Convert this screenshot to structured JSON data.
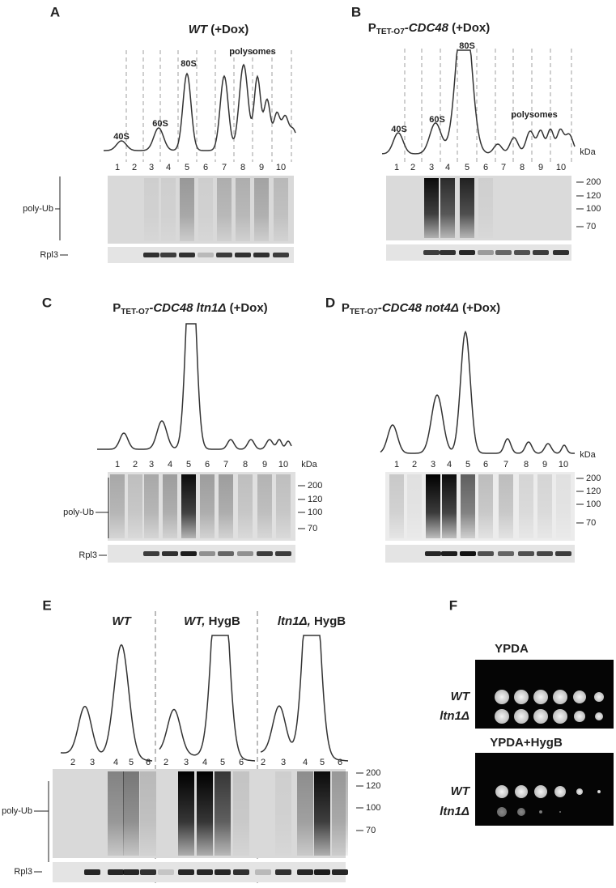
{
  "panel_a": {
    "label": "A",
    "title": [
      "WT",
      " (+Dox)"
    ],
    "peaks": [
      "40S",
      "60S",
      "80S",
      "polysomes"
    ],
    "fractions": [
      "1",
      "2",
      "3",
      "4",
      "5",
      "6",
      "7",
      "8",
      "9",
      "10"
    ],
    "blot_labels": [
      "poly-Ub",
      "Rpl3"
    ]
  },
  "panel_b": {
    "label": "B",
    "title": [
      "P",
      "TET-O7",
      "-CDC48",
      " (+Dox)"
    ],
    "peaks": [
      "40S",
      "60S",
      "80S",
      "polysomes"
    ],
    "fractions": [
      "1",
      "2",
      "3",
      "4",
      "5",
      "6",
      "7",
      "8",
      "9",
      "10"
    ],
    "kda_unit": "kDa",
    "kda_markers": [
      "200",
      "120",
      "100",
      "70"
    ]
  },
  "panel_c": {
    "label": "C",
    "title": [
      "P",
      "TET-O7",
      "-CDC48 ltn1Δ",
      " (+Dox)"
    ],
    "fractions": [
      "1",
      "2",
      "3",
      "4",
      "5",
      "6",
      "7",
      "8",
      "9",
      "10"
    ],
    "kda_unit": "kDa",
    "kda_markers": [
      "200",
      "120",
      "100",
      "70"
    ],
    "blot_labels": [
      "poly-Ub",
      "Rpl3"
    ]
  },
  "panel_d": {
    "label": "D",
    "title": [
      "P",
      "TET-O7",
      "-CDC48 not4Δ",
      " (+Dox)"
    ],
    "fractions": [
      "1",
      "2",
      "3",
      "4",
      "5",
      "6",
      "7",
      "8",
      "9",
      "10"
    ],
    "kda_unit": "kDa",
    "kda_markers": [
      "200",
      "120",
      "100",
      "70"
    ]
  },
  "panel_e": {
    "label": "E",
    "conditions": [
      [
        "WT"
      ],
      [
        "WT,",
        " HygB"
      ],
      [
        "ltn1Δ,",
        " HygB"
      ]
    ],
    "fractions": [
      [
        "2",
        "3",
        "4",
        "5",
        "6"
      ],
      [
        "2",
        "3",
        "4",
        "5",
        "6"
      ],
      [
        "2",
        "3",
        "4",
        "5",
        "6"
      ]
    ],
    "kda_markers": [
      "200",
      "120",
      "100",
      "70"
    ],
    "blot_labels": [
      "poly-Ub",
      "Rpl3"
    ]
  },
  "panel_f": {
    "label": "F",
    "plates": [
      {
        "medium": "YPDA",
        "strains": [
          "WT",
          "ltn1Δ"
        ]
      },
      {
        "medium": "YPDA+HygB",
        "strains": [
          "WT",
          "ltn1Δ"
        ]
      }
    ]
  }
}
